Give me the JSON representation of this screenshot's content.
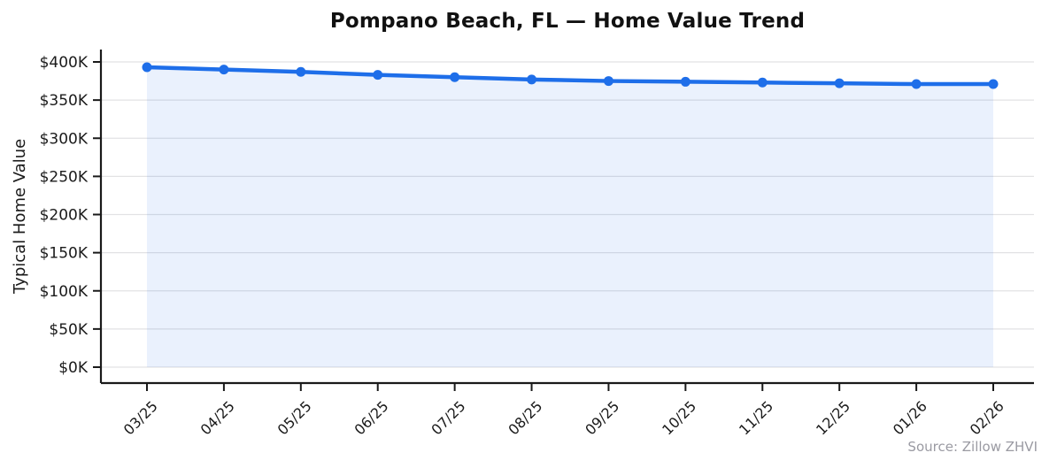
{
  "header": {
    "title": "Pompano Beach, FL — Home Value Trend"
  },
  "chart_data": {
    "type": "line",
    "title": "Pompano Beach, FL — Home Value Trend",
    "xlabel": "",
    "ylabel": "Typical Home Value",
    "categories": [
      "03/25",
      "04/25",
      "05/25",
      "06/25",
      "07/25",
      "08/25",
      "09/25",
      "10/25",
      "11/25",
      "12/25",
      "01/26",
      "02/26"
    ],
    "series": [
      {
        "name": "Typical Home Value",
        "values": [
          393000,
          390000,
          387000,
          383000,
          380000,
          377000,
          375000,
          374000,
          373000,
          372000,
          371000,
          371000
        ]
      }
    ],
    "ylim": [
      0,
      400000
    ],
    "y_ticks": [
      {
        "value": 0,
        "label": "$0K"
      },
      {
        "value": 50000,
        "label": "$50K"
      },
      {
        "value": 100000,
        "label": "$100K"
      },
      {
        "value": 150000,
        "label": "$150K"
      },
      {
        "value": 200000,
        "label": "$200K"
      },
      {
        "value": 250000,
        "label": "$250K"
      },
      {
        "value": 300000,
        "label": "$300K"
      },
      {
        "value": 350000,
        "label": "$350K"
      },
      {
        "value": 400000,
        "label": "$400K"
      }
    ],
    "grid": true,
    "legend": false,
    "marker": "circle",
    "area_fill": true
  },
  "footer": {
    "source": "Source: Zillow ZHVI"
  },
  "colors": {
    "line": "#1E6EE9",
    "fill": "#1E6EE9",
    "fill_opacity": "0.095",
    "grid": "#E2E2E4",
    "axis": "#1A1A1A",
    "tick_text": "#1A1A1A",
    "title_text": "#111111",
    "source_text": "#9A9AA2",
    "background": "#FFFFFF"
  }
}
